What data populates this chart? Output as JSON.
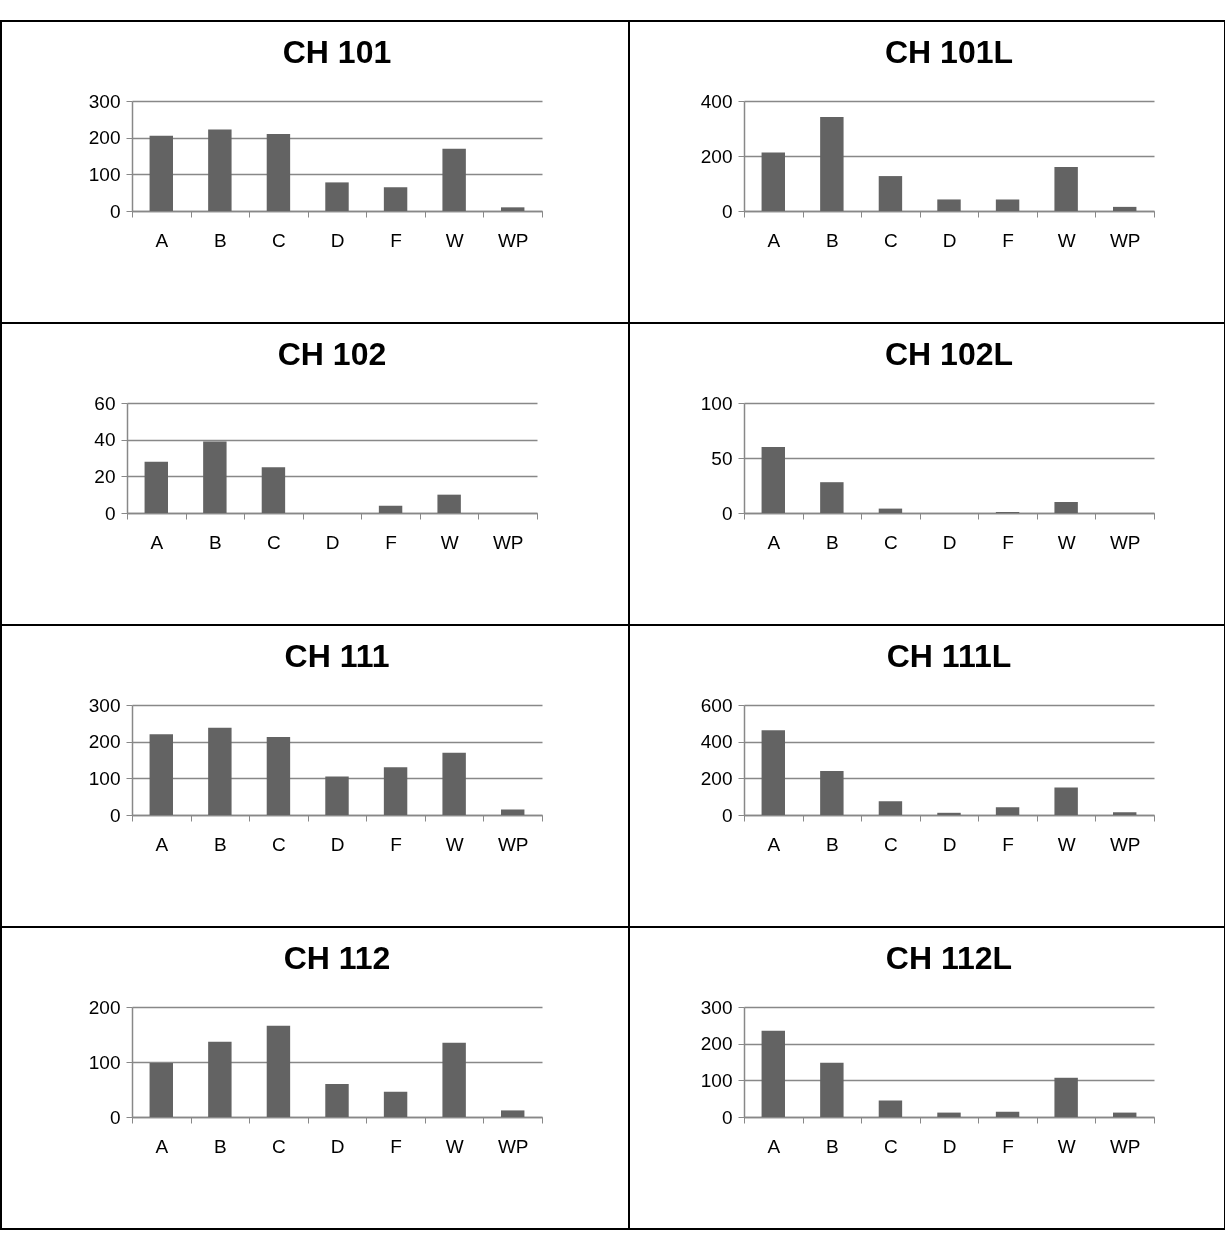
{
  "chart_data": [
    {
      "type": "bar",
      "title": "CH 101",
      "categories": [
        "A",
        "B",
        "C",
        "D",
        "F",
        "W",
        "WP"
      ],
      "values": [
        205,
        222,
        210,
        78,
        65,
        170,
        10
      ],
      "color": "#636363",
      "ylim": [
        0,
        300
      ],
      "yticks": [
        0,
        100,
        200,
        300
      ],
      "grid": "y"
    },
    {
      "type": "bar",
      "title": "CH 101L",
      "categories": [
        "A",
        "B",
        "C",
        "D",
        "F",
        "W",
        "WP"
      ],
      "values": [
        213,
        342,
        127,
        42,
        42,
        160,
        15
      ],
      "color": "#636363",
      "ylim": [
        0,
        400
      ],
      "yticks": [
        0,
        200,
        400
      ],
      "grid": "y"
    },
    {
      "type": "bar",
      "title": "CH 102",
      "categories": [
        "A",
        "B",
        "C",
        "D",
        "F",
        "W",
        "WP"
      ],
      "values": [
        28,
        39,
        25,
        0,
        4,
        10,
        0
      ],
      "color": "#636363",
      "ylim": [
        0,
        60
      ],
      "yticks": [
        0,
        20,
        40,
        60
      ],
      "grid": "y"
    },
    {
      "type": "bar",
      "title": "CH 102L",
      "categories": [
        "A",
        "B",
        "C",
        "D",
        "F",
        "W",
        "WP"
      ],
      "values": [
        60,
        28,
        4,
        0,
        1,
        10,
        0
      ],
      "color": "#636363",
      "ylim": [
        0,
        100
      ],
      "yticks": [
        0,
        50,
        100
      ],
      "grid": "y"
    },
    {
      "type": "bar",
      "title": "CH 111",
      "categories": [
        "A",
        "B",
        "C",
        "D",
        "F",
        "W",
        "WP"
      ],
      "values": [
        220,
        238,
        213,
        105,
        130,
        170,
        15
      ],
      "color": "#636363",
      "ylim": [
        0,
        300
      ],
      "yticks": [
        0,
        100,
        200,
        300
      ],
      "grid": "y"
    },
    {
      "type": "bar",
      "title": "CH 111L",
      "categories": [
        "A",
        "B",
        "C",
        "D",
        "F",
        "W",
        "WP"
      ],
      "values": [
        462,
        240,
        75,
        12,
        42,
        150,
        15
      ],
      "color": "#636363",
      "ylim": [
        0,
        600
      ],
      "yticks": [
        0,
        200,
        400,
        600
      ],
      "grid": "y"
    },
    {
      "type": "bar",
      "title": "CH 112",
      "categories": [
        "A",
        "B",
        "C",
        "D",
        "F",
        "W",
        "WP"
      ],
      "values": [
        98,
        137,
        166,
        60,
        46,
        135,
        12
      ],
      "color": "#636363",
      "ylim": [
        0,
        200
      ],
      "yticks": [
        0,
        100,
        200
      ],
      "grid": "y"
    },
    {
      "type": "bar",
      "title": "CH 112L",
      "categories": [
        "A",
        "B",
        "C",
        "D",
        "F",
        "W",
        "WP"
      ],
      "values": [
        235,
        148,
        45,
        12,
        14,
        107,
        12
      ],
      "color": "#636363",
      "ylim": [
        0,
        300
      ],
      "yticks": [
        0,
        100,
        200,
        300
      ],
      "grid": "y"
    }
  ]
}
